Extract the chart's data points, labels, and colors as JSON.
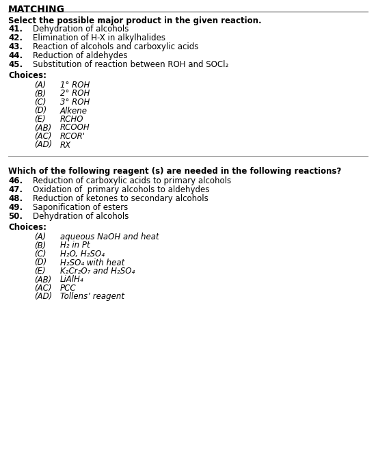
{
  "title": "MATCHING",
  "bg_color": "#ffffff",
  "section1_header": "Select the possible major product in the given reaction.",
  "section1_items": [
    [
      "41.",
      "Dehydration of alcohols"
    ],
    [
      "42.",
      "Elimination of H-X in alkylhalides"
    ],
    [
      "43.",
      "Reaction of alcohols and carboxylic acids"
    ],
    [
      "44.",
      "Reduction of aldehydes"
    ],
    [
      "45.",
      "Substitution of reaction between ROH and SOCl₂"
    ]
  ],
  "section1_choices_label": "Choices:",
  "section1_choices": [
    [
      "(A)",
      "1° ROH"
    ],
    [
      "(B)",
      "2° ROH"
    ],
    [
      "(C)",
      "3° ROH"
    ],
    [
      "(D)",
      "Alkene"
    ],
    [
      "(E)",
      "RCHO"
    ],
    [
      "(AB)",
      "RCOOH"
    ],
    [
      "(AC)",
      "RCOR'"
    ],
    [
      "(AD)",
      "RX"
    ]
  ],
  "section2_header": "Which of the following reagent (s) are needed in the following reactions?",
  "section2_items": [
    [
      "46.",
      "Reduction of carboxylic acids to primary alcohols"
    ],
    [
      "47.",
      "Oxidation of  primary alcohols to aldehydes"
    ],
    [
      "48.",
      "Reduction of ketones to secondary alcohols"
    ],
    [
      "49.",
      "Saponification of esters"
    ],
    [
      "50.",
      "Dehydration of alcohols"
    ]
  ],
  "section2_choices_label": "Choices:",
  "section2_choices": [
    [
      "(A)",
      "aqueous NaOH and heat"
    ],
    [
      "(B)",
      "H₂ in Pt"
    ],
    [
      "(C)",
      "H₂O, H₂SO₄"
    ],
    [
      "(D)",
      "H₂SO₄ with heat"
    ],
    [
      "(E)",
      "K₂Cr₂O₇ and H₂SO₄"
    ],
    [
      "(AB)",
      "LiAlH₄"
    ],
    [
      "(AC)",
      "PCC"
    ],
    [
      "(AD)",
      "Tollens’ reagent"
    ]
  ]
}
